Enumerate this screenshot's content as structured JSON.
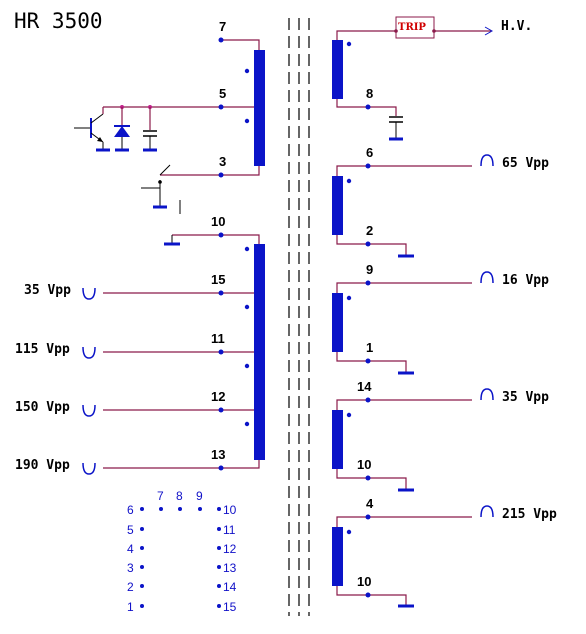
{
  "title": "HR 3500",
  "trip_label": "TRIP",
  "hv_label": "H.V.",
  "colors": {
    "wire": "#8b1a4a",
    "coil": "#0b14c8",
    "trip_text": "#d00000",
    "dot": "#0b14c8"
  },
  "primary_pins": [
    "7",
    "5",
    "3"
  ],
  "secondary_left_pins": [
    "10",
    "15",
    "11",
    "12",
    "13"
  ],
  "left_voltages": [
    "35 Vpp",
    "115 Vpp",
    "150 Vpp",
    "190 Vpp"
  ],
  "right_top_pin": "8",
  "right_windings": [
    {
      "top_pin": "6",
      "bottom_pin": "2",
      "voltage": "65 Vpp"
    },
    {
      "top_pin": "9",
      "bottom_pin": "1",
      "voltage": "16 Vpp"
    },
    {
      "top_pin": "14",
      "bottom_pin": "10",
      "voltage": "35 Vpp"
    },
    {
      "top_pin": "4",
      "bottom_pin": "10",
      "voltage": "215 Vpp"
    }
  ],
  "pinout": {
    "left_column": [
      "6",
      "5",
      "4",
      "3",
      "2",
      "1"
    ],
    "top_row": [
      "7",
      "8",
      "9"
    ],
    "right_column": [
      "10",
      "11",
      "12",
      "13",
      "14",
      "15"
    ]
  }
}
